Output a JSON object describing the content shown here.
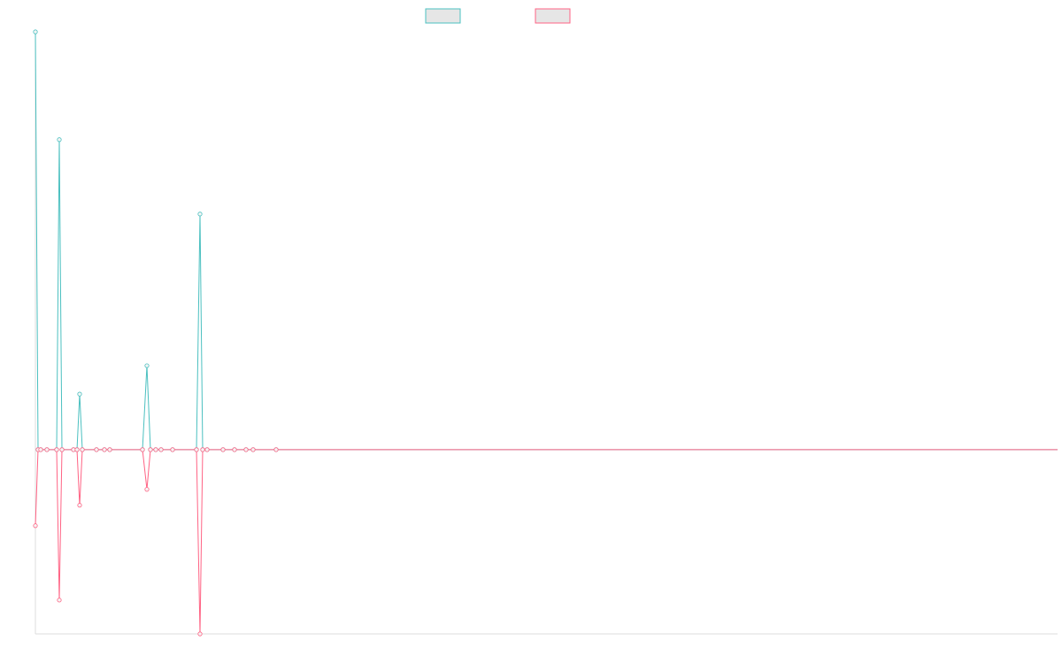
{
  "chart_data": {
    "type": "line",
    "x": [
      0,
      3,
      6,
      13,
      24,
      27,
      30,
      43,
      47,
      50,
      53,
      69,
      78,
      84,
      121,
      126,
      130,
      136,
      142,
      155,
      182,
      186,
      189,
      194,
      212,
      225,
      238,
      246,
      272,
      1155
    ],
    "xlim": [
      0,
      1155
    ],
    "ylim": [
      -44.1,
      100
    ],
    "series": [
      {
        "color": "#4bc0c0",
        "values": [
          100,
          0,
          0,
          0,
          0,
          74.2,
          0,
          0,
          0,
          13.3,
          0,
          0,
          0,
          0,
          0,
          20.1,
          0,
          0,
          0,
          0,
          0,
          56.4,
          0,
          0,
          0,
          0,
          0,
          0,
          0,
          0
        ]
      },
      {
        "color": "#ff6384",
        "values": [
          -18.2,
          0,
          0,
          0,
          0,
          -36,
          0,
          0,
          0,
          -13.3,
          0,
          0,
          0,
          0,
          0,
          -9.5,
          0,
          0,
          0,
          0,
          0,
          -44.1,
          0,
          0,
          0,
          0,
          0,
          0,
          0,
          0
        ]
      }
    ]
  }
}
